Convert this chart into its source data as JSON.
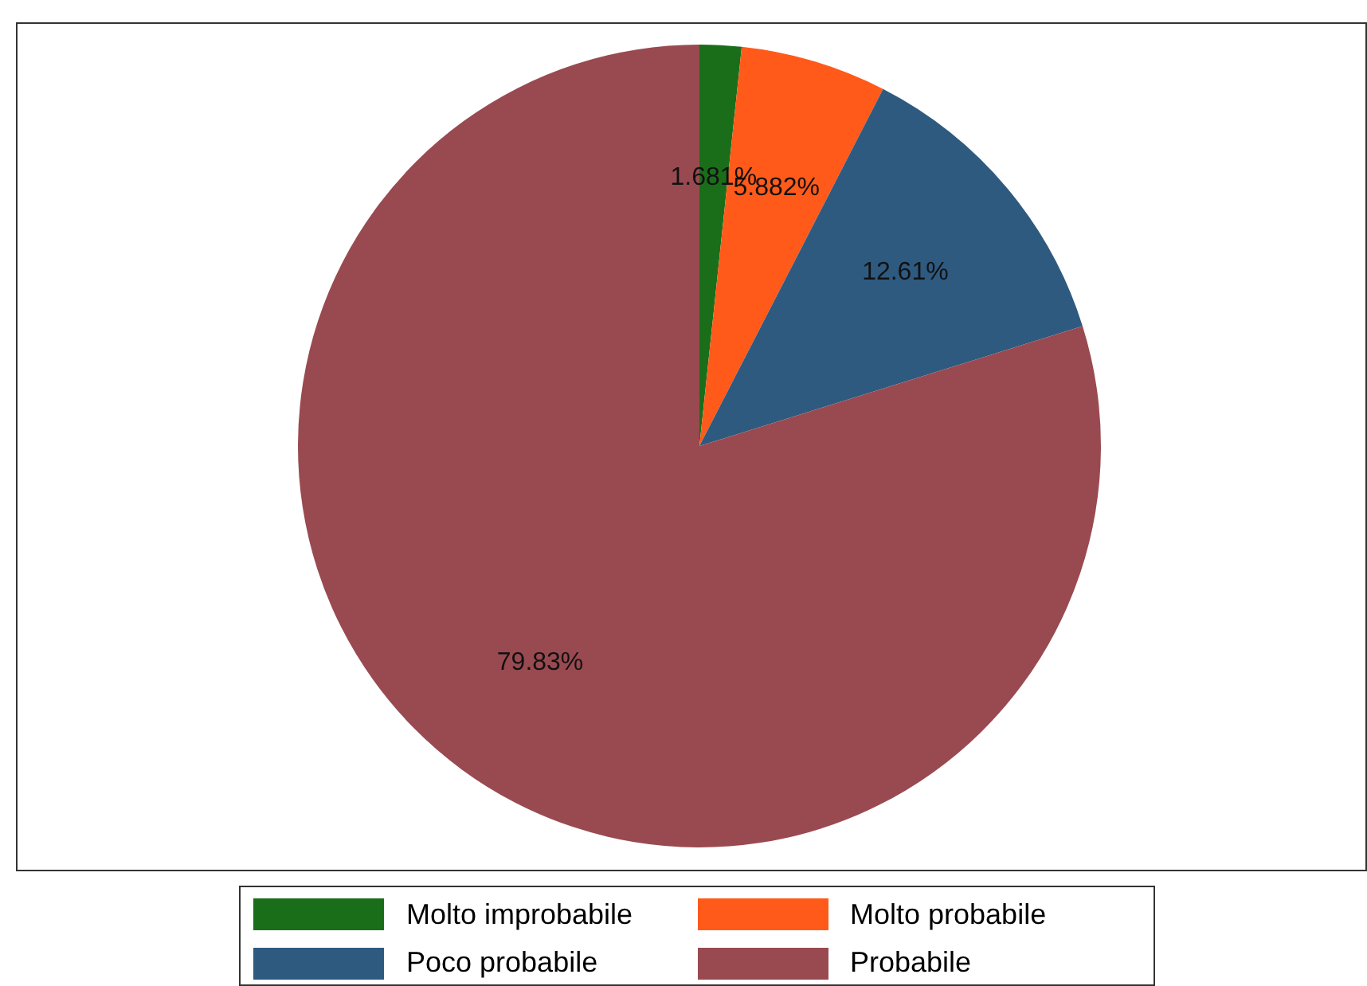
{
  "chart_data": {
    "type": "pie",
    "categories": [
      "Molto improbabile",
      "Molto probabile",
      "Poco probabile",
      "Probabile"
    ],
    "values": [
      1.681,
      5.882,
      12.61,
      79.83
    ],
    "colors": [
      "#1a6e1a",
      "#ff5a1a",
      "#2e5a80",
      "#994a50"
    ],
    "value_labels": [
      "1.681%",
      "5.882%",
      "12.61%",
      "79.83%"
    ],
    "legend": "bottom"
  }
}
